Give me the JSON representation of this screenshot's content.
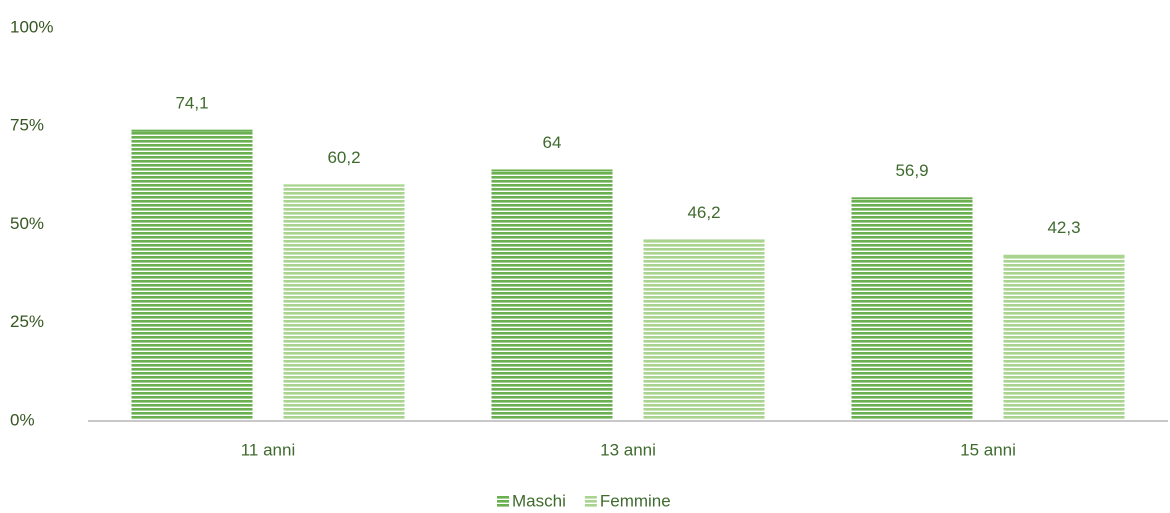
{
  "chart_data": {
    "type": "bar",
    "categories": [
      "11 anni",
      "13 anni",
      "15 anni"
    ],
    "series": [
      {
        "name": "Maschi",
        "color": "#6aaf50",
        "values": [
          74.1,
          64,
          56.9
        ],
        "value_labels": [
          "74,1",
          "64",
          "56,9"
        ]
      },
      {
        "name": "Femmine",
        "color": "#a8d48f",
        "values": [
          60.2,
          46.2,
          42.3
        ],
        "value_labels": [
          "60,2",
          "46,2",
          "42,3"
        ]
      }
    ],
    "ylim": [
      0,
      100
    ],
    "yticks": [
      {
        "value": 0,
        "label": "0%"
      },
      {
        "value": 25,
        "label": "25%"
      },
      {
        "value": 50,
        "label": "50%"
      },
      {
        "value": 75,
        "label": "75%"
      },
      {
        "value": 100,
        "label": "100%"
      }
    ],
    "legend": "bottom"
  }
}
